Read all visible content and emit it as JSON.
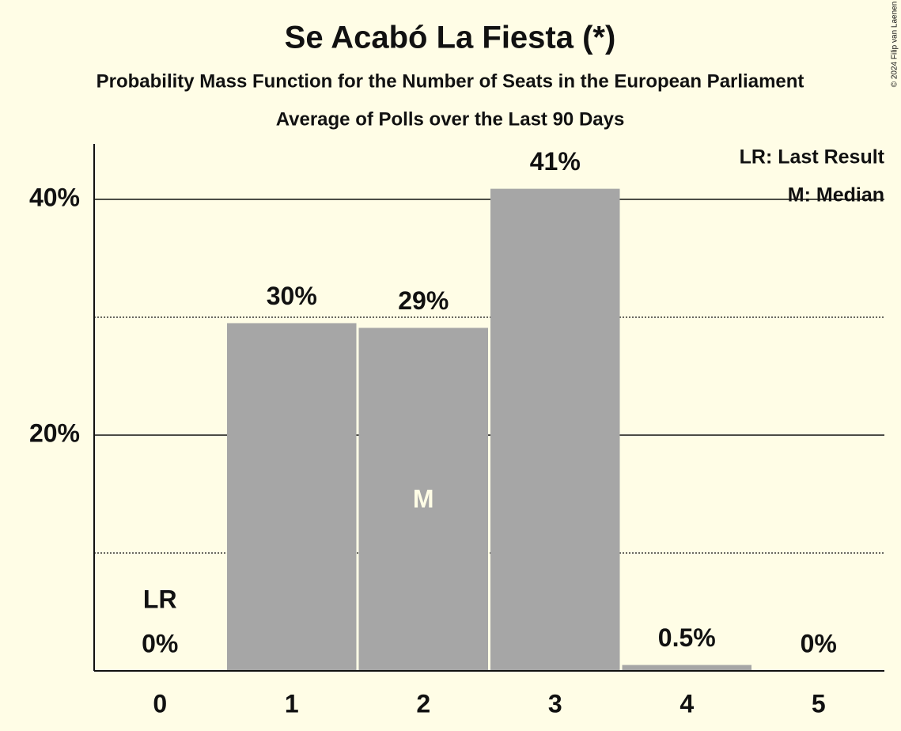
{
  "chart_data": {
    "type": "bar",
    "title": "Se Acabó La Fiesta (*)",
    "subtitle": "Probability Mass Function for the Number of Seats in the European Parliament",
    "subtitle2": "Average of Polls over the Last 90 Days",
    "categories": [
      "0",
      "1",
      "2",
      "3",
      "4",
      "5"
    ],
    "values": [
      0,
      29.5,
      29.1,
      40.9,
      0.5,
      0
    ],
    "value_labels": [
      "0%",
      "30%",
      "29%",
      "41%",
      "0.5%",
      "0%"
    ],
    "color": "#a6a6a6",
    "ylim": [
      0,
      44.7
    ],
    "yticks": [
      {
        "value": 20,
        "label": "20%"
      },
      {
        "value": 40,
        "label": "40%"
      }
    ],
    "minor_yticks": [
      10,
      30
    ],
    "grid": true,
    "last_result": {
      "category": "0",
      "label": "LR"
    },
    "median": {
      "category": "2",
      "label": "M"
    },
    "legend": [
      "LR: Last Result",
      "M: Median"
    ],
    "legend_position": "upper right",
    "copyright": "© 2024 Filip van Laenen"
  }
}
